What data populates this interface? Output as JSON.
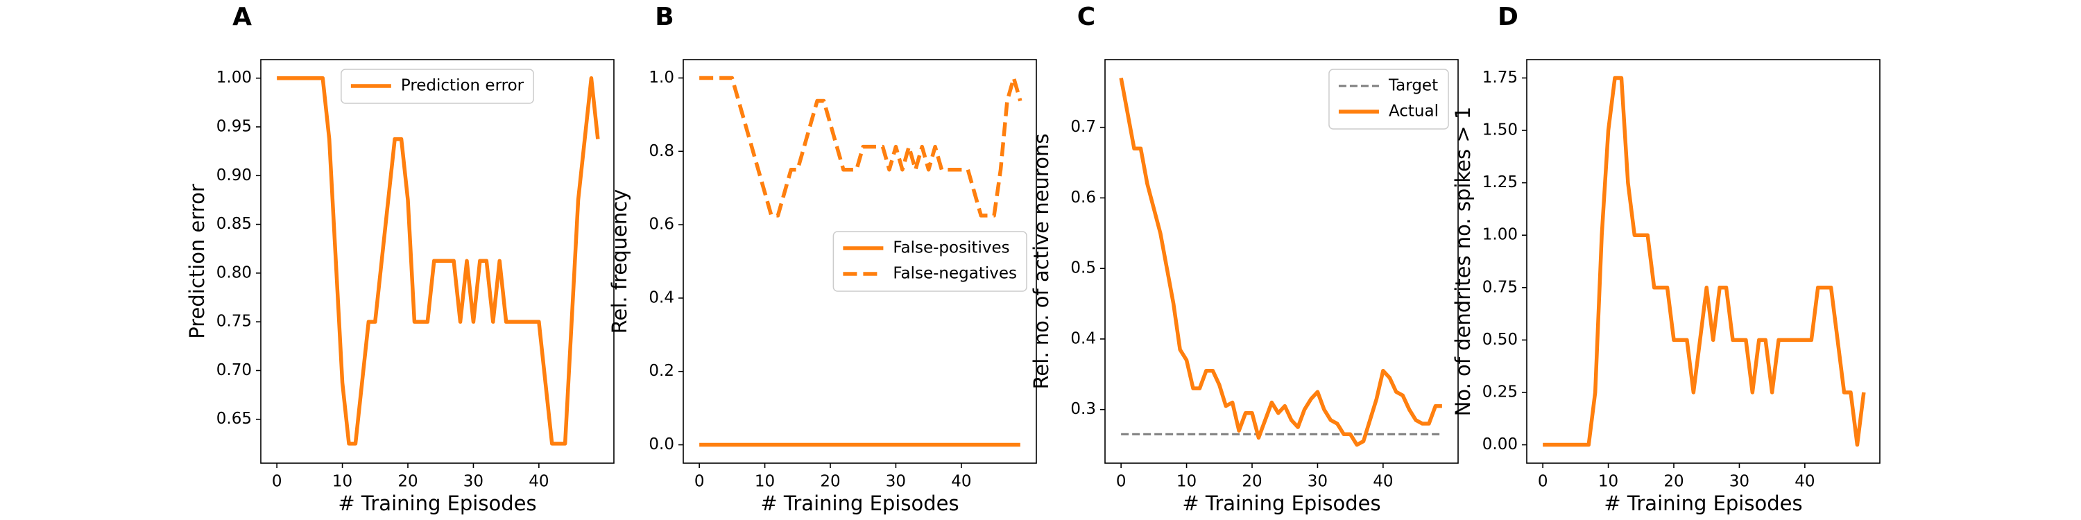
{
  "chart_data": [
    {
      "type": "line",
      "title": "A",
      "xlabel": "# Training Episodes",
      "ylabel": "Prediction error",
      "x": [
        0,
        1,
        2,
        3,
        4,
        5,
        6,
        7,
        8,
        9,
        10,
        11,
        12,
        13,
        14,
        15,
        16,
        17,
        18,
        19,
        20,
        21,
        22,
        23,
        24,
        25,
        26,
        27,
        28,
        29,
        30,
        31,
        32,
        33,
        34,
        35,
        36,
        37,
        38,
        39,
        40,
        41,
        42,
        43,
        44,
        45,
        46,
        47,
        48,
        49
      ],
      "series": [
        {
          "name": "Prediction error",
          "color": "#ff7f0e",
          "linestyle": "solid",
          "values": [
            1.0,
            1.0,
            1.0,
            1.0,
            1.0,
            1.0,
            1.0,
            1.0,
            0.9375,
            0.8125,
            0.6875,
            0.625,
            0.625,
            0.6875,
            0.75,
            0.75,
            0.8125,
            0.875,
            0.9375,
            0.9375,
            0.875,
            0.75,
            0.75,
            0.75,
            0.8125,
            0.8125,
            0.8125,
            0.8125,
            0.75,
            0.8125,
            0.75,
            0.8125,
            0.8125,
            0.75,
            0.8125,
            0.75,
            0.75,
            0.75,
            0.75,
            0.75,
            0.75,
            0.6875,
            0.625,
            0.625,
            0.625,
            0.75,
            0.875,
            0.9375,
            1.0,
            0.9375
          ]
        }
      ],
      "xlim": [
        -2.45,
        51.45
      ],
      "xticks": [
        0,
        10,
        20,
        30,
        40
      ],
      "ylim": [
        0.605,
        1.019
      ],
      "yticks": [
        {
          "value": 0.65,
          "label": "0.65"
        },
        {
          "value": 0.7,
          "label": "0.70"
        },
        {
          "value": 0.75,
          "label": "0.75"
        },
        {
          "value": 0.8,
          "label": "0.80"
        },
        {
          "value": 0.85,
          "label": "0.85"
        },
        {
          "value": 0.9,
          "label": "0.90"
        },
        {
          "value": 0.95,
          "label": "0.95"
        },
        {
          "value": 1.0,
          "label": "1.00"
        }
      ],
      "legend": "upper center"
    },
    {
      "type": "line",
      "title": "B",
      "xlabel": "# Training Episodes",
      "ylabel": "Rel. frequency",
      "x": [
        0,
        1,
        2,
        3,
        4,
        5,
        6,
        7,
        8,
        9,
        10,
        11,
        12,
        13,
        14,
        15,
        16,
        17,
        18,
        19,
        20,
        21,
        22,
        23,
        24,
        25,
        26,
        27,
        28,
        29,
        30,
        31,
        32,
        33,
        34,
        35,
        36,
        37,
        38,
        39,
        40,
        41,
        42,
        43,
        44,
        45,
        46,
        47,
        48,
        49
      ],
      "series": [
        {
          "name": "False-positives",
          "color": "#ff7f0e",
          "linestyle": "solid",
          "values": [
            0,
            0,
            0,
            0,
            0,
            0,
            0,
            0,
            0,
            0,
            0,
            0,
            0,
            0,
            0,
            0,
            0,
            0,
            0,
            0,
            0,
            0,
            0,
            0,
            0,
            0,
            0,
            0,
            0,
            0,
            0,
            0,
            0,
            0,
            0,
            0,
            0,
            0,
            0,
            0,
            0,
            0,
            0,
            0,
            0,
            0,
            0,
            0,
            0,
            0
          ]
        },
        {
          "name": "False-negatives",
          "color": "#ff7f0e",
          "linestyle": "dashed",
          "values": [
            1.0,
            1.0,
            1.0,
            1.0,
            1.0,
            1.0,
            0.9375,
            0.875,
            0.8125,
            0.75,
            0.6875,
            0.625,
            0.625,
            0.6875,
            0.75,
            0.75,
            0.8125,
            0.875,
            0.9375,
            0.9375,
            0.875,
            0.8125,
            0.75,
            0.75,
            0.75,
            0.8125,
            0.8125,
            0.8125,
            0.8125,
            0.75,
            0.8125,
            0.75,
            0.8125,
            0.75,
            0.8125,
            0.75,
            0.8125,
            0.75,
            0.75,
            0.75,
            0.75,
            0.75,
            0.6875,
            0.625,
            0.625,
            0.625,
            0.75,
            0.9375,
            1.0,
            0.9375
          ]
        }
      ],
      "xlim": [
        -2.45,
        51.45
      ],
      "xticks": [
        0,
        10,
        20,
        30,
        40
      ],
      "ylim": [
        -0.05,
        1.05
      ],
      "yticks": [
        {
          "value": 0,
          "label": "0.0"
        },
        {
          "value": 0.2,
          "label": "0.2"
        },
        {
          "value": 0.4,
          "label": "0.4"
        },
        {
          "value": 0.6,
          "label": "0.6"
        },
        {
          "value": 0.8,
          "label": "0.8"
        },
        {
          "value": 1.0,
          "label": "1.0"
        }
      ],
      "legend": "center right"
    },
    {
      "type": "line",
      "title": "C",
      "xlabel": "# Training Episodes",
      "ylabel": "Rel. no. of active neurons",
      "x": [
        0,
        1,
        2,
        3,
        4,
        5,
        6,
        7,
        8,
        9,
        10,
        11,
        12,
        13,
        14,
        15,
        16,
        17,
        18,
        19,
        20,
        21,
        22,
        23,
        24,
        25,
        26,
        27,
        28,
        29,
        30,
        31,
        32,
        33,
        34,
        35,
        36,
        37,
        38,
        39,
        40,
        41,
        42,
        43,
        44,
        45,
        46,
        47,
        48,
        49
      ],
      "series": [
        {
          "name": "Target",
          "color": "#7f7f7f",
          "linestyle": "dashed",
          "values": [
            0.265,
            0.265,
            0.265,
            0.265,
            0.265,
            0.265,
            0.265,
            0.265,
            0.265,
            0.265,
            0.265,
            0.265,
            0.265,
            0.265,
            0.265,
            0.265,
            0.265,
            0.265,
            0.265,
            0.265,
            0.265,
            0.265,
            0.265,
            0.265,
            0.265,
            0.265,
            0.265,
            0.265,
            0.265,
            0.265,
            0.265,
            0.265,
            0.265,
            0.265,
            0.265,
            0.265,
            0.265,
            0.265,
            0.265,
            0.265,
            0.265,
            0.265,
            0.265,
            0.265,
            0.265,
            0.265,
            0.265,
            0.265,
            0.265,
            0.265
          ]
        },
        {
          "name": "Actual",
          "color": "#ff7f0e",
          "linestyle": "solid",
          "values": [
            0.77,
            0.72,
            0.67,
            0.67,
            0.62,
            0.585,
            0.55,
            0.5,
            0.45,
            0.385,
            0.37,
            0.33,
            0.33,
            0.355,
            0.355,
            0.335,
            0.305,
            0.31,
            0.27,
            0.295,
            0.295,
            0.26,
            0.285,
            0.31,
            0.295,
            0.305,
            0.285,
            0.275,
            0.3,
            0.315,
            0.325,
            0.3,
            0.285,
            0.28,
            0.265,
            0.265,
            0.25,
            0.255,
            0.285,
            0.315,
            0.355,
            0.345,
            0.325,
            0.32,
            0.3,
            0.285,
            0.28,
            0.28,
            0.305,
            0.305
          ]
        }
      ],
      "xlim": [
        -2.45,
        51.45
      ],
      "xticks": [
        0,
        10,
        20,
        30,
        40
      ],
      "ylim": [
        0.224,
        0.796
      ],
      "yticks": [
        0.3,
        0.4,
        0.5,
        0.6,
        0.7
      ],
      "legend": "upper right"
    },
    {
      "type": "line",
      "title": "D",
      "xlabel": "# Training Episodes",
      "ylabel": "No. of dendrites no. spikes > 1",
      "x": [
        0,
        1,
        2,
        3,
        4,
        5,
        6,
        7,
        8,
        9,
        10,
        11,
        12,
        13,
        14,
        15,
        16,
        17,
        18,
        19,
        20,
        21,
        22,
        23,
        24,
        25,
        26,
        27,
        28,
        29,
        30,
        31,
        32,
        33,
        34,
        35,
        36,
        37,
        38,
        39,
        40,
        41,
        42,
        43,
        44,
        45,
        46,
        47,
        48,
        49
      ],
      "series": [
        {
          "color": "#ff7f0e",
          "linestyle": "solid",
          "values": [
            0,
            0,
            0,
            0,
            0,
            0,
            0,
            0,
            0.25,
            1.0,
            1.5,
            1.75,
            1.75,
            1.25,
            1.0,
            1.0,
            1.0,
            0.75,
            0.75,
            0.75,
            0.5,
            0.5,
            0.5,
            0.25,
            0.5,
            0.75,
            0.5,
            0.75,
            0.75,
            0.5,
            0.5,
            0.5,
            0.25,
            0.5,
            0.5,
            0.25,
            0.5,
            0.5,
            0.5,
            0.5,
            0.5,
            0.5,
            0.75,
            0.75,
            0.75,
            0.5,
            0.25,
            0.25,
            0,
            0.25
          ]
        }
      ],
      "xlim": [
        -2.45,
        51.45
      ],
      "xticks": [
        0,
        10,
        20,
        30,
        40
      ],
      "ylim": [
        -0.0875,
        1.8375
      ],
      "yticks": [
        {
          "value": 0,
          "label": "0.00"
        },
        {
          "value": 0.25,
          "label": "0.25"
        },
        {
          "value": 0.5,
          "label": "0.50"
        },
        {
          "value": 0.75,
          "label": "0.75"
        },
        {
          "value": 1.0,
          "label": "1.00"
        },
        {
          "value": 1.25,
          "label": "1.25"
        },
        {
          "value": 1.5,
          "label": "1.50"
        },
        {
          "value": 1.75,
          "label": "1.75"
        }
      ]
    }
  ]
}
